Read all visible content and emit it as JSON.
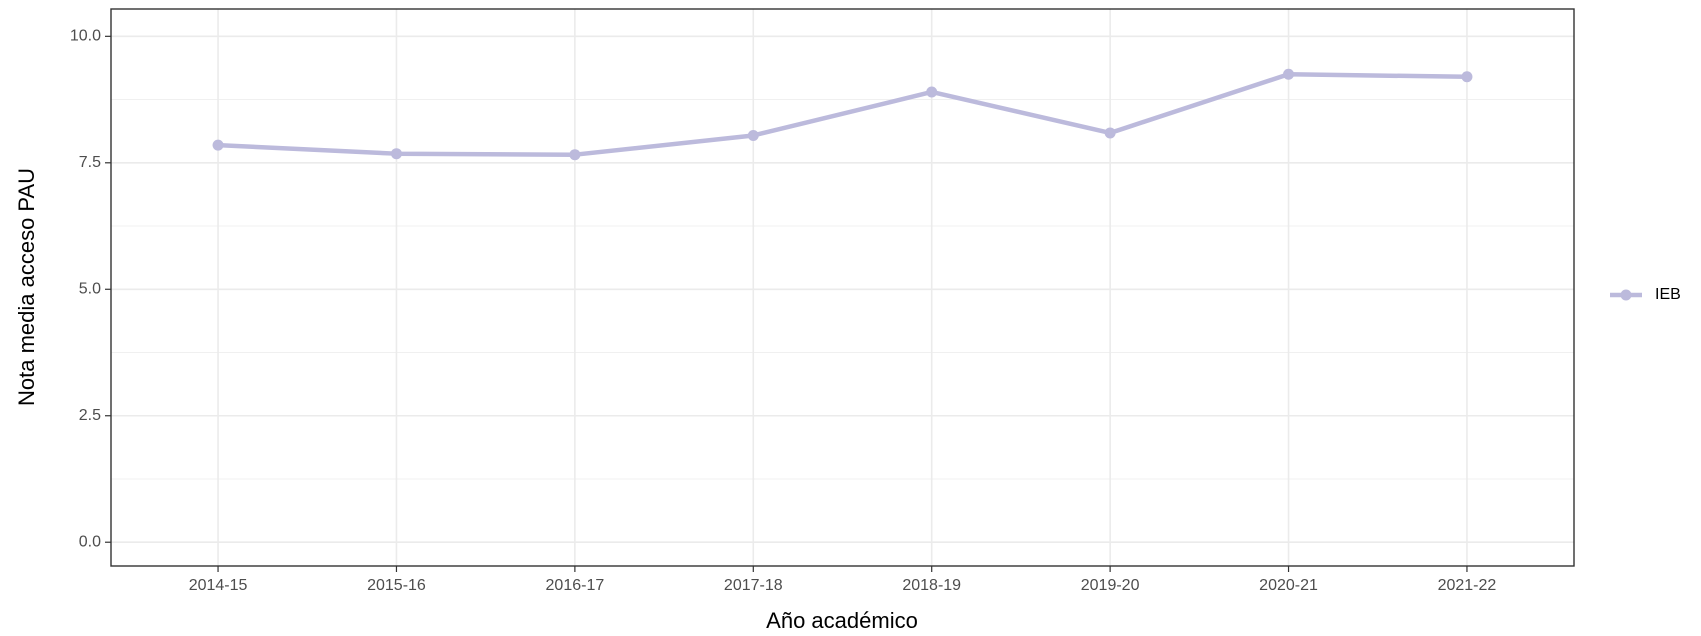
{
  "chart_data": {
    "type": "line",
    "x_label": "Año académico",
    "y_label": "Nota media acceso PAU",
    "categories": [
      "2014-15",
      "2015-16",
      "2016-17",
      "2017-18",
      "2018-19",
      "2019-20",
      "2020-21",
      "2021-22"
    ],
    "series": [
      {
        "name": "IEB",
        "color": "#bcbadc",
        "values": [
          7.85,
          7.68,
          7.66,
          8.04,
          8.9,
          8.09,
          9.25,
          9.2
        ]
      }
    ],
    "ylim": [
      -0.47,
      10.54
    ],
    "yticks": [
      {
        "value": 0,
        "label": "0.0"
      },
      {
        "value": 2.5,
        "label": "2.5"
      },
      {
        "value": 5,
        "label": "5.0"
      },
      {
        "value": 7.5,
        "label": "7.5"
      },
      {
        "value": 10,
        "label": "10.0"
      }
    ],
    "grid": true,
    "legend": "right"
  }
}
